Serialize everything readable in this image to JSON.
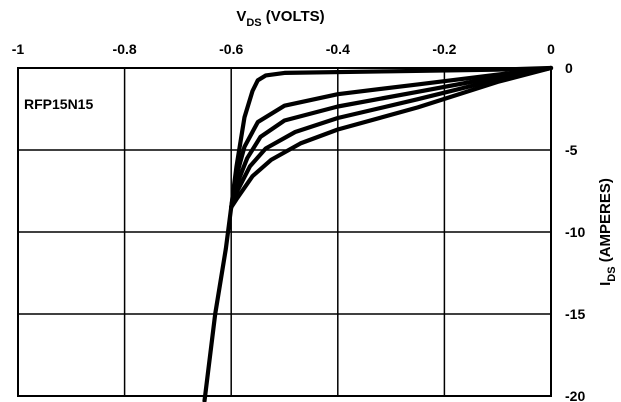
{
  "chart_data": {
    "type": "line",
    "title": "",
    "annotation": "RFP15N15",
    "xlabel": {
      "main": "V",
      "sub": "DS",
      "rest": " (VOLTS)"
    },
    "ylabel": {
      "main": "I",
      "sub": "DS",
      "rest": " (AMPERES)"
    },
    "xlim": [
      -1,
      0
    ],
    "ylim": [
      -20,
      0
    ],
    "x_ticks": [
      -1,
      -0.8,
      -0.6,
      -0.4,
      -0.2,
      0
    ],
    "x_tick_labels": [
      "-1",
      "-0.8",
      "-0.6",
      "-0.4",
      "-0.2",
      "0"
    ],
    "y_ticks": [
      0,
      -5,
      -10,
      -15,
      -20
    ],
    "y_tick_labels": [
      "0",
      "-5",
      "-10",
      "-15",
      "-20"
    ],
    "grid": true,
    "line_color": "#000000",
    "series": [
      {
        "points": [
          [
            0,
            0
          ],
          [
            -0.1,
            -0.1
          ],
          [
            -0.3,
            -0.2
          ],
          [
            -0.5,
            -0.3
          ],
          [
            -0.535,
            -0.45
          ],
          [
            -0.55,
            -0.75
          ],
          [
            -0.56,
            -1.4
          ],
          [
            -0.575,
            -3
          ],
          [
            -0.59,
            -6
          ],
          [
            -0.6,
            -8.5
          ],
          [
            -0.61,
            -11
          ],
          [
            -0.63,
            -15
          ],
          [
            -0.65,
            -20.3
          ]
        ]
      },
      {
        "points": [
          [
            0,
            0
          ],
          [
            -0.1,
            -0.4
          ],
          [
            -0.25,
            -1.0
          ],
          [
            -0.4,
            -1.6
          ],
          [
            -0.5,
            -2.3
          ],
          [
            -0.55,
            -3.3
          ],
          [
            -0.575,
            -4.8
          ],
          [
            -0.592,
            -6.8
          ],
          [
            -0.6,
            -8.5
          ]
        ]
      },
      {
        "points": [
          [
            0,
            0
          ],
          [
            -0.1,
            -0.55
          ],
          [
            -0.25,
            -1.45
          ],
          [
            -0.4,
            -2.35
          ],
          [
            -0.5,
            -3.2
          ],
          [
            -0.545,
            -4.2
          ],
          [
            -0.57,
            -5.5
          ],
          [
            -0.592,
            -7.3
          ],
          [
            -0.6,
            -8.5
          ]
        ]
      },
      {
        "points": [
          [
            0,
            0
          ],
          [
            -0.1,
            -0.7
          ],
          [
            -0.25,
            -1.9
          ],
          [
            -0.4,
            -3.05
          ],
          [
            -0.48,
            -3.9
          ],
          [
            -0.535,
            -4.9
          ],
          [
            -0.565,
            -6.0
          ],
          [
            -0.59,
            -7.6
          ],
          [
            -0.6,
            -8.5
          ]
        ]
      },
      {
        "points": [
          [
            0,
            0
          ],
          [
            -0.1,
            -0.85
          ],
          [
            -0.25,
            -2.4
          ],
          [
            -0.4,
            -3.75
          ],
          [
            -0.47,
            -4.6
          ],
          [
            -0.525,
            -5.6
          ],
          [
            -0.56,
            -6.6
          ],
          [
            -0.59,
            -8.0
          ],
          [
            -0.6,
            -8.5
          ]
        ]
      }
    ]
  }
}
